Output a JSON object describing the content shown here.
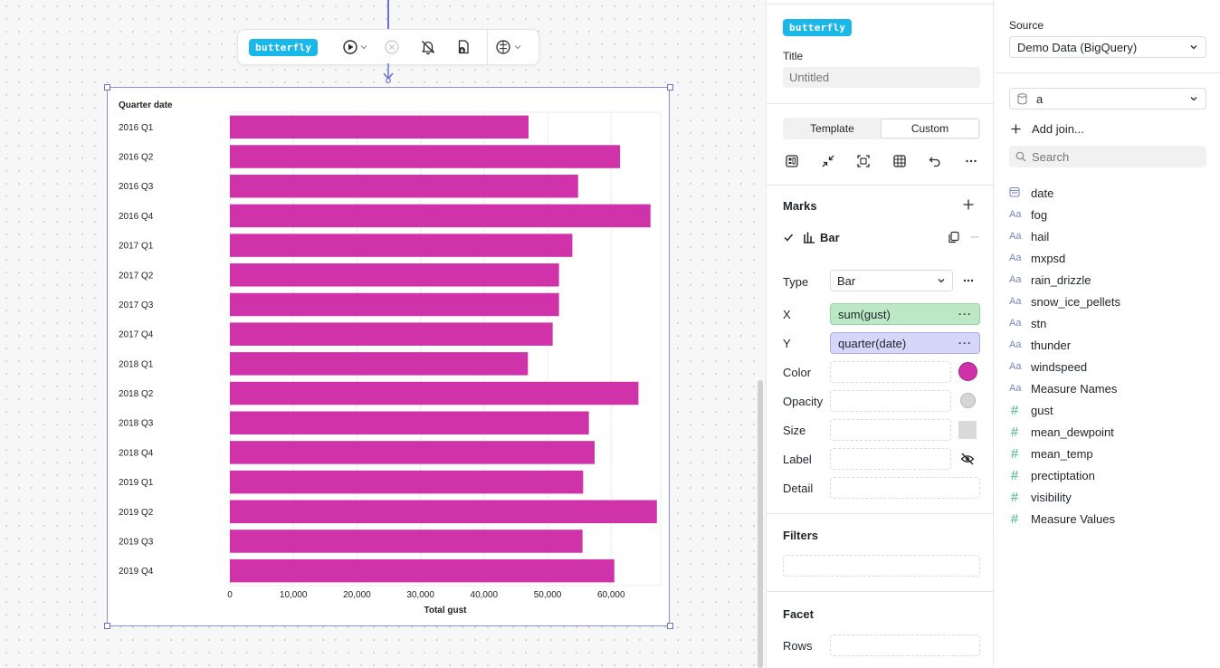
{
  "toolbar": {
    "badge": "butterfly"
  },
  "chart_data": {
    "type": "bar",
    "orientation": "horizontal",
    "ylabel": "Quarter date",
    "xlabel": "Total gust",
    "categories": [
      "2016 Q1",
      "2016 Q2",
      "2016 Q3",
      "2016 Q4",
      "2017 Q1",
      "2017 Q2",
      "2017 Q3",
      "2017 Q4",
      "2018 Q1",
      "2018 Q2",
      "2018 Q3",
      "2018 Q4",
      "2019 Q1",
      "2019 Q2",
      "2019 Q3",
      "2019 Q4"
    ],
    "values": [
      47000,
      61400,
      54800,
      66200,
      53900,
      51800,
      51800,
      50800,
      46900,
      64300,
      56500,
      57400,
      55600,
      67200,
      55500,
      60500
    ],
    "xlim": [
      0,
      67800
    ],
    "xticks": [
      0,
      10000,
      20000,
      30000,
      40000,
      50000,
      60000
    ],
    "xtick_labels": [
      "0",
      "10,000",
      "20,000",
      "30,000",
      "40,000",
      "50,000",
      "60,000"
    ],
    "grid": true,
    "color": "#cf32a9"
  },
  "inspector": {
    "badge": "butterfly",
    "title_label": "Title",
    "title_placeholder": "Untitled",
    "tabs": [
      "Template",
      "Custom"
    ],
    "marks_heading": "Marks",
    "mark_name": "Bar",
    "type_label": "Type",
    "type_value": "Bar",
    "x_label": "X",
    "x_value": "sum(gust)",
    "y_label": "Y",
    "y_value": "quarter(date)",
    "color_label": "Color",
    "opacity_label": "Opacity",
    "size_label": "Size",
    "label_label": "Label",
    "detail_label": "Detail",
    "filters_heading": "Filters",
    "facet_heading": "Facet",
    "rows_label": "Rows",
    "mark_color": "#cf32a9",
    "x_pill_color": "#bde8c6",
    "y_pill_color": "#d6d6fb"
  },
  "source_panel": {
    "source_label": "Source",
    "source_value": "Demo Data (BigQuery)",
    "table_value": "a",
    "add_join": "Add join...",
    "search_placeholder": "Search",
    "fields": [
      {
        "type": "date",
        "name": "date"
      },
      {
        "type": "text",
        "name": "fog"
      },
      {
        "type": "text",
        "name": "hail"
      },
      {
        "type": "text",
        "name": "mxpsd"
      },
      {
        "type": "text",
        "name": "rain_drizzle"
      },
      {
        "type": "text",
        "name": "snow_ice_pellets"
      },
      {
        "type": "text",
        "name": "stn"
      },
      {
        "type": "text",
        "name": "thunder"
      },
      {
        "type": "text",
        "name": "windspeed"
      },
      {
        "type": "text",
        "name": "Measure Names"
      },
      {
        "type": "number",
        "name": "gust"
      },
      {
        "type": "number",
        "name": "mean_dewpoint"
      },
      {
        "type": "number",
        "name": "mean_temp"
      },
      {
        "type": "number",
        "name": "prectiptation"
      },
      {
        "type": "number",
        "name": "visibility"
      },
      {
        "type": "number",
        "name": "Measure Values"
      }
    ]
  }
}
